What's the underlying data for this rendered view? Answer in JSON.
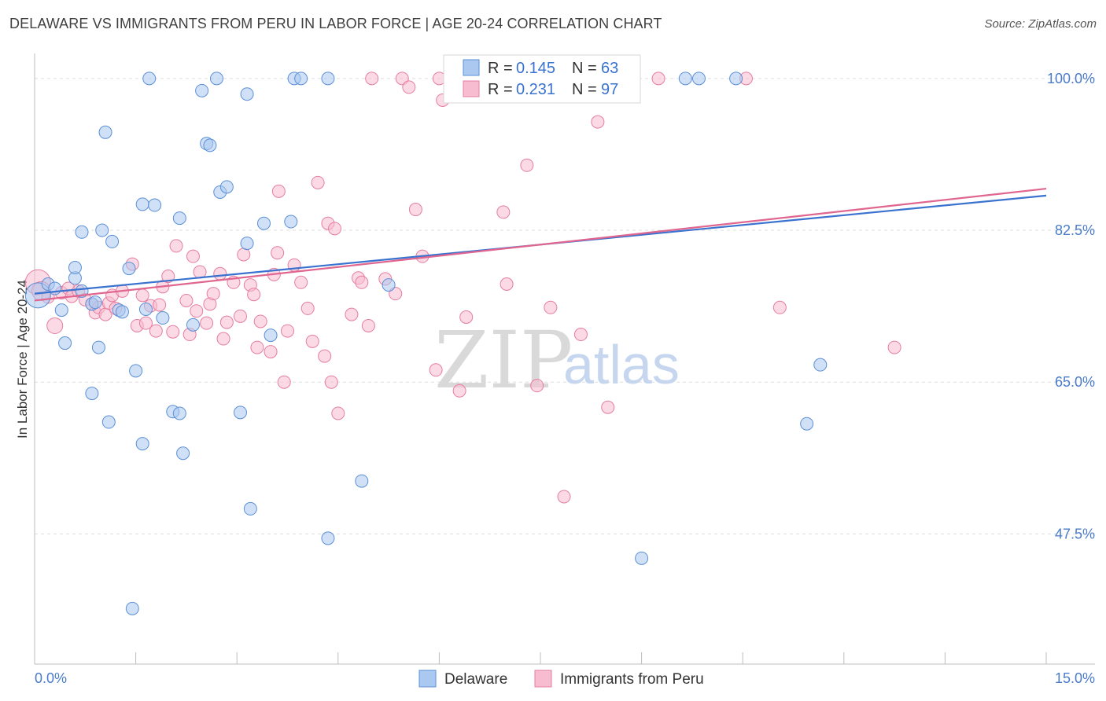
{
  "title": "DELAWARE VS IMMIGRANTS FROM PERU IN LABOR FORCE | AGE 20-24 CORRELATION CHART",
  "source": "Source: ZipAtlas.com",
  "watermark": {
    "zip": "ZIP",
    "atlas": "atlas"
  },
  "colors": {
    "delaware_fill": "#aac8f0",
    "delaware_stroke": "#5b8fd6",
    "delaware_line": "#3a72d0",
    "peru_fill": "#f7bcd0",
    "peru_stroke": "#e57ea1",
    "peru_line": "#e0668f",
    "tick_label": "#4a7cc9",
    "grid": "#dddddd"
  },
  "legend": {
    "rows": [
      {
        "r_label": "R =",
        "r_value": "0.145",
        "n_label": "N =",
        "n_value": "63"
      },
      {
        "r_label": "R =",
        "r_value": "0.231",
        "n_label": "N =",
        "n_value": "97"
      }
    ]
  },
  "bottom_legend": [
    "Delaware",
    "Immigrants from Peru"
  ],
  "chart_data": {
    "type": "scatter",
    "title": "DELAWARE VS IMMIGRANTS FROM PERU IN LABOR FORCE | AGE 20-24 CORRELATION CHART",
    "xlabel": "",
    "ylabel": "In Labor Force | Age 20-24",
    "xlim": [
      0,
      15
    ],
    "ylim": [
      32.5,
      101.8
    ],
    "x_tick_labels": [
      "0.0%",
      "15.0%"
    ],
    "y_ticks": [
      47.5,
      65.0,
      82.5,
      100.0
    ],
    "y_tick_labels": [
      "47.5%",
      "65.0%",
      "82.5%",
      "100.0%"
    ],
    "grid": "horizontal dashed",
    "legend_position": "top-center",
    "series": [
      {
        "name": "Delaware",
        "r": 0.145,
        "n": 63,
        "trend": {
          "x": [
            0,
            15
          ],
          "y": [
            75.2,
            86.5
          ]
        },
        "points": [
          [
            0.05,
            75.0,
            16
          ],
          [
            0.2,
            76.3,
            8
          ],
          [
            0.3,
            75.8,
            8
          ],
          [
            0.4,
            73.3,
            8
          ],
          [
            0.45,
            69.5,
            8
          ],
          [
            0.6,
            77.0,
            8
          ],
          [
            0.6,
            78.2,
            8
          ],
          [
            0.7,
            75.5,
            8
          ],
          [
            0.7,
            82.3,
            8
          ],
          [
            0.85,
            74.0,
            8
          ],
          [
            0.85,
            63.7,
            8
          ],
          [
            0.9,
            74.2,
            8
          ],
          [
            0.95,
            69.0,
            8
          ],
          [
            1.0,
            82.5,
            8
          ],
          [
            1.05,
            93.8,
            8
          ],
          [
            1.1,
            60.4,
            8
          ],
          [
            1.15,
            81.2,
            8
          ],
          [
            1.25,
            73.3,
            8
          ],
          [
            1.3,
            73.1,
            8
          ],
          [
            1.4,
            78.1,
            8
          ],
          [
            1.45,
            38.9,
            8
          ],
          [
            1.5,
            66.3,
            8
          ],
          [
            1.6,
            57.9,
            8
          ],
          [
            1.6,
            85.5,
            8
          ],
          [
            1.65,
            73.4,
            8
          ],
          [
            1.7,
            100.0,
            8
          ],
          [
            1.78,
            85.4,
            8
          ],
          [
            1.9,
            72.4,
            8
          ],
          [
            2.05,
            61.6,
            8
          ],
          [
            2.15,
            61.4,
            8
          ],
          [
            2.15,
            83.9,
            8
          ],
          [
            2.2,
            56.8,
            8
          ],
          [
            2.35,
            71.6,
            8
          ],
          [
            2.48,
            98.6,
            8
          ],
          [
            2.55,
            92.5,
            8
          ],
          [
            2.6,
            92.3,
            8
          ],
          [
            2.7,
            100.0,
            8
          ],
          [
            2.75,
            86.9,
            8
          ],
          [
            2.85,
            87.5,
            8
          ],
          [
            3.05,
            61.5,
            8
          ],
          [
            3.15,
            81.0,
            8
          ],
          [
            3.15,
            98.2,
            8
          ],
          [
            3.2,
            50.4,
            8
          ],
          [
            3.4,
            83.3,
            8
          ],
          [
            3.5,
            70.4,
            8
          ],
          [
            3.8,
            83.5,
            8
          ],
          [
            3.85,
            100.0,
            8
          ],
          [
            3.95,
            100.0,
            8
          ],
          [
            4.35,
            100.0,
            8
          ],
          [
            4.35,
            47.0,
            8
          ],
          [
            4.85,
            53.6,
            8
          ],
          [
            5.25,
            76.2,
            8
          ],
          [
            9.0,
            44.7,
            8
          ],
          [
            9.65,
            100.0,
            8
          ],
          [
            9.85,
            100.0,
            8
          ],
          [
            10.4,
            100.0,
            8
          ],
          [
            11.45,
            60.2,
            8
          ],
          [
            11.65,
            67.0,
            8
          ]
        ]
      },
      {
        "name": "Immigrants from Peru",
        "r": 0.231,
        "n": 97,
        "trend": {
          "x": [
            0,
            15
          ],
          "y": [
            74.4,
            87.3
          ]
        },
        "points": [
          [
            0.05,
            76.5,
            16
          ],
          [
            0.1,
            75.5,
            12
          ],
          [
            0.2,
            74.8,
            8
          ],
          [
            0.3,
            71.5,
            10
          ],
          [
            0.4,
            75.3,
            8
          ],
          [
            0.5,
            75.8,
            8
          ],
          [
            0.55,
            74.9,
            8
          ],
          [
            0.65,
            75.5,
            8
          ],
          [
            0.75,
            74.5,
            8
          ],
          [
            0.85,
            74.0,
            8
          ],
          [
            0.9,
            73.0,
            8
          ],
          [
            0.95,
            73.6,
            8
          ],
          [
            1.05,
            72.8,
            8
          ],
          [
            1.1,
            74.1,
            8
          ],
          [
            1.15,
            75.0,
            8
          ],
          [
            1.2,
            73.5,
            8
          ],
          [
            1.3,
            75.5,
            8
          ],
          [
            1.45,
            78.6,
            8
          ],
          [
            1.52,
            71.5,
            8
          ],
          [
            1.6,
            75.0,
            8
          ],
          [
            1.65,
            71.8,
            8
          ],
          [
            1.72,
            73.8,
            8
          ],
          [
            1.8,
            70.9,
            8
          ],
          [
            1.85,
            73.9,
            8
          ],
          [
            1.9,
            76.0,
            8
          ],
          [
            1.98,
            77.2,
            8
          ],
          [
            2.05,
            70.8,
            8
          ],
          [
            2.1,
            80.7,
            8
          ],
          [
            2.25,
            74.4,
            8
          ],
          [
            2.3,
            70.5,
            8
          ],
          [
            2.35,
            79.5,
            8
          ],
          [
            2.4,
            73.2,
            8
          ],
          [
            2.45,
            77.7,
            8
          ],
          [
            2.55,
            71.8,
            8
          ],
          [
            2.6,
            74.0,
            8
          ],
          [
            2.65,
            75.2,
            8
          ],
          [
            2.75,
            77.5,
            8
          ],
          [
            2.8,
            70.0,
            8
          ],
          [
            2.85,
            71.9,
            8
          ],
          [
            2.95,
            76.5,
            8
          ],
          [
            3.05,
            72.6,
            8
          ],
          [
            3.1,
            79.7,
            8
          ],
          [
            3.2,
            76.2,
            8
          ],
          [
            3.25,
            75.1,
            8
          ],
          [
            3.3,
            69.0,
            8
          ],
          [
            3.35,
            72.0,
            8
          ],
          [
            3.5,
            68.5,
            8
          ],
          [
            3.55,
            77.4,
            8
          ],
          [
            3.6,
            79.9,
            8
          ],
          [
            3.62,
            87.0,
            8
          ],
          [
            3.7,
            65.0,
            8
          ],
          [
            3.75,
            70.9,
            8
          ],
          [
            3.85,
            78.5,
            8
          ],
          [
            3.95,
            76.5,
            8
          ],
          [
            4.05,
            73.5,
            8
          ],
          [
            4.12,
            69.7,
            8
          ],
          [
            4.2,
            88.0,
            8
          ],
          [
            4.3,
            68.0,
            8
          ],
          [
            4.35,
            83.3,
            8
          ],
          [
            4.4,
            65.0,
            8
          ],
          [
            4.45,
            82.7,
            8
          ],
          [
            4.5,
            61.4,
            8
          ],
          [
            4.7,
            72.8,
            8
          ],
          [
            4.8,
            77.0,
            8
          ],
          [
            4.85,
            76.5,
            8
          ],
          [
            4.95,
            71.5,
            8
          ],
          [
            5.0,
            100.0,
            8
          ],
          [
            5.2,
            76.9,
            8
          ],
          [
            5.35,
            75.2,
            8
          ],
          [
            5.45,
            100.0,
            8
          ],
          [
            5.55,
            99.0,
            8
          ],
          [
            5.65,
            84.9,
            8
          ],
          [
            5.75,
            79.5,
            8
          ],
          [
            5.95,
            66.4,
            8
          ],
          [
            6.0,
            100.0,
            8
          ],
          [
            6.05,
            97.5,
            8
          ],
          [
            6.3,
            64.0,
            8
          ],
          [
            6.4,
            72.5,
            8
          ],
          [
            6.6,
            100.0,
            8
          ],
          [
            6.95,
            84.6,
            8
          ],
          [
            7.0,
            76.3,
            8
          ],
          [
            7.3,
            90.0,
            8
          ],
          [
            7.45,
            64.6,
            8
          ],
          [
            7.55,
            100.0,
            8
          ],
          [
            7.65,
            73.6,
            8
          ],
          [
            7.85,
            51.8,
            8
          ],
          [
            8.1,
            70.5,
            8
          ],
          [
            8.35,
            95.0,
            8
          ],
          [
            8.5,
            62.1,
            8
          ],
          [
            9.25,
            100.0,
            8
          ],
          [
            10.55,
            100.0,
            8
          ],
          [
            11.05,
            73.6,
            8
          ],
          [
            12.75,
            69.0,
            8
          ]
        ]
      }
    ]
  }
}
